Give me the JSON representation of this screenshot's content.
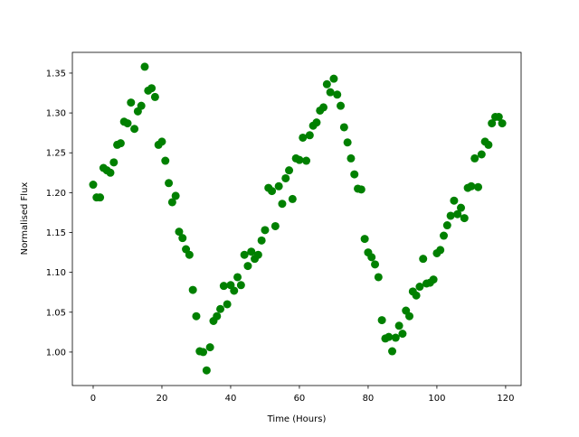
{
  "chart_data": {
    "type": "scatter",
    "xlabel": "Time (Hours)",
    "ylabel": "Normalised Flux",
    "color": "#008000",
    "grid": false,
    "x": [
      0,
      1,
      2,
      3,
      4,
      5,
      6,
      7,
      8,
      9,
      10,
      11,
      12,
      13,
      14,
      15,
      16,
      17,
      18,
      19,
      20,
      21,
      22,
      23,
      24,
      25,
      26,
      27,
      28,
      29,
      30,
      31,
      32,
      33,
      34,
      35,
      36,
      37,
      38,
      39,
      40,
      41,
      42,
      43,
      44,
      45,
      46,
      47,
      48,
      49,
      50,
      51,
      52,
      53,
      54,
      55,
      56,
      57,
      58,
      59,
      60,
      61,
      62,
      63,
      64,
      65,
      66,
      67,
      68,
      69,
      70,
      71,
      72,
      73,
      74,
      75,
      76,
      77,
      78,
      79,
      80,
      81,
      82,
      83,
      84,
      85,
      86,
      87,
      88,
      89,
      90,
      91,
      92,
      93,
      94,
      95,
      96,
      97,
      98,
      99,
      100,
      101,
      102,
      103,
      104,
      105,
      106,
      107,
      108,
      109,
      110,
      111,
      112,
      113,
      114,
      115,
      116,
      117,
      118,
      119
    ],
    "values": [
      1.21,
      1.194,
      1.194,
      1.231,
      1.228,
      1.225,
      1.238,
      1.26,
      1.262,
      1.289,
      1.287,
      1.313,
      1.28,
      1.302,
      1.309,
      1.358,
      1.328,
      1.331,
      1.32,
      1.26,
      1.264,
      1.24,
      1.212,
      1.188,
      1.196,
      1.151,
      1.143,
      1.129,
      1.122,
      1.078,
      1.045,
      1.001,
      1.0,
      0.977,
      1.006,
      1.039,
      1.045,
      1.054,
      1.083,
      1.06,
      1.084,
      1.077,
      1.094,
      1.084,
      1.122,
      1.108,
      1.126,
      1.117,
      1.122,
      1.14,
      1.153,
      1.206,
      1.202,
      1.158,
      1.208,
      1.186,
      1.218,
      1.228,
      1.192,
      1.243,
      1.241,
      1.269,
      1.24,
      1.272,
      1.284,
      1.288,
      1.303,
      1.307,
      1.336,
      1.326,
      1.343,
      1.323,
      1.309,
      1.282,
      1.263,
      1.243,
      1.223,
      1.205,
      1.204,
      1.142,
      1.125,
      1.119,
      1.11,
      1.094,
      1.04,
      1.017,
      1.019,
      1.001,
      1.018,
      1.033,
      1.023,
      1.052,
      1.045,
      1.076,
      1.071,
      1.082,
      1.117,
      1.086,
      1.087,
      1.091,
      1.124,
      1.128,
      1.146,
      1.159,
      1.171,
      1.19,
      1.173,
      1.181,
      1.168,
      1.206,
      1.208,
      1.243,
      1.207,
      1.248,
      1.264,
      1.26,
      1.287,
      1.295,
      1.295,
      1.287
    ],
    "xlim": [
      -6.05,
      124.5
    ],
    "ylim": [
      0.958,
      1.376
    ],
    "xticks": [
      0,
      20,
      40,
      60,
      80,
      100,
      120
    ],
    "yticks": [
      {
        "value": 1,
        "label": "1.00"
      },
      1.05,
      {
        "value": 1.1,
        "label": "1.10"
      },
      1.15,
      {
        "value": 1.2,
        "label": "1.20"
      },
      1.25,
      {
        "value": 1.3,
        "label": "1.30"
      },
      1.35
    ]
  }
}
